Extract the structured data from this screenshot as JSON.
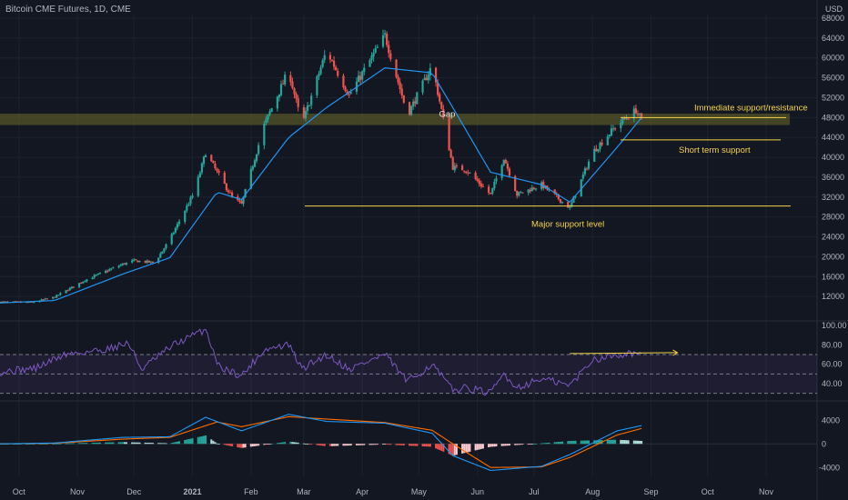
{
  "header": {
    "title": "Bitcoin CME Futures, 1D, CME",
    "currency": "USD"
  },
  "colors": {
    "up": "#26a69a",
    "down": "#ef5350",
    "ma": "#2196f3",
    "rsi": "#7e57c2",
    "macd": "#2196f3",
    "signal": "#ff6d00",
    "annotation": "#f5d44a"
  },
  "chart_data": [
    {
      "type": "candlestick",
      "title": "Bitcoin CME Futures, 1D, CME",
      "ylabel": "USD",
      "ylim": [
        8000,
        68000
      ],
      "yticks": [
        12000,
        16000,
        20000,
        24000,
        28000,
        32000,
        36000,
        40000,
        44000,
        48000,
        52000,
        56000,
        60000,
        64000,
        68000
      ],
      "xticks": [
        "Oct",
        "Nov",
        "Dec",
        "2021",
        "Feb",
        "Mar",
        "Apr",
        "May",
        "Jun",
        "Jul",
        "Aug",
        "Sep",
        "Oct",
        "Nov"
      ],
      "price_path": [
        [
          "2020-09-21",
          10900
        ],
        [
          "2020-10-08",
          10800
        ],
        [
          "2020-10-20",
          11900
        ],
        [
          "2020-11-05",
          15300
        ],
        [
          "2020-11-25",
          18500
        ],
        [
          "2020-12-01",
          19200
        ],
        [
          "2020-12-12",
          18800
        ],
        [
          "2020-12-20",
          23500
        ],
        [
          "2021-01-02",
          33000
        ],
        [
          "2021-01-08",
          41000
        ],
        [
          "2021-01-14",
          37000
        ],
        [
          "2021-01-22",
          32000
        ],
        [
          "2021-01-27",
          30500
        ],
        [
          "2021-02-08",
          46500
        ],
        [
          "2021-02-21",
          57500
        ],
        [
          "2021-02-28",
          46500
        ],
        [
          "2021-03-13",
          61500
        ],
        [
          "2021-03-25",
          52500
        ],
        [
          "2021-04-13",
          64500
        ],
        [
          "2021-04-25",
          48500
        ],
        [
          "2021-05-08",
          58500
        ],
        [
          "2021-05-13",
          49500
        ],
        [
          "2021-05-19",
          38000
        ],
        [
          "2021-05-26",
          37500
        ],
        [
          "2021-06-08",
          32500
        ],
        [
          "2021-06-15",
          40000
        ],
        [
          "2021-06-22",
          32500
        ],
        [
          "2021-07-05",
          34500
        ],
        [
          "2021-07-20",
          29800
        ],
        [
          "2021-08-01",
          41000
        ],
        [
          "2021-08-14",
          46500
        ],
        [
          "2021-08-24",
          49500
        ],
        [
          "2021-08-27",
          47500
        ]
      ],
      "moving_average_path": [
        [
          "2020-09-21",
          10700
        ],
        [
          "2020-10-20",
          11200
        ],
        [
          "2020-11-25",
          16500
        ],
        [
          "2020-12-20",
          19800
        ],
        [
          "2021-01-14",
          33000
        ],
        [
          "2021-01-27",
          31500
        ],
        [
          "2021-02-21",
          44000
        ],
        [
          "2021-03-13",
          50000
        ],
        [
          "2021-04-13",
          58000
        ],
        [
          "2021-05-08",
          57000
        ],
        [
          "2021-05-19",
          50000
        ],
        [
          "2021-06-08",
          37000
        ],
        [
          "2021-07-05",
          34500
        ],
        [
          "2021-07-20",
          31000
        ],
        [
          "2021-08-14",
          42000
        ],
        [
          "2021-08-27",
          48000
        ]
      ],
      "annotations": [
        {
          "label": "Gap",
          "x": "2021-05-16",
          "y": 48500
        },
        {
          "label": "Immediate support/resistance",
          "level": 48000,
          "band": [
            46500,
            48800
          ]
        },
        {
          "label": "Short term support",
          "level": 43500
        },
        {
          "label": "Major support level",
          "level": 30200
        }
      ]
    },
    {
      "type": "line",
      "title": "",
      "ylim": [
        25,
        100
      ],
      "yticks": [
        40.0,
        60.0,
        80.0,
        100.0
      ],
      "overbought": 70,
      "midline": 50,
      "oversold": 30,
      "rsi_path": [
        [
          "2020-09-21",
          52
        ],
        [
          "2020-10-10",
          56
        ],
        [
          "2020-10-25",
          70
        ],
        [
          "2020-11-15",
          75
        ],
        [
          "2020-11-28",
          82
        ],
        [
          "2020-12-05",
          55
        ],
        [
          "2020-12-22",
          80
        ],
        [
          "2021-01-08",
          96
        ],
        [
          "2021-01-15",
          58
        ],
        [
          "2021-01-27",
          48
        ],
        [
          "2021-02-08",
          75
        ],
        [
          "2021-02-21",
          80
        ],
        [
          "2021-02-28",
          55
        ],
        [
          "2021-03-13",
          70
        ],
        [
          "2021-03-25",
          55
        ],
        [
          "2021-04-13",
          70
        ],
        [
          "2021-04-25",
          42
        ],
        [
          "2021-05-08",
          60
        ],
        [
          "2021-05-19",
          33
        ],
        [
          "2021-05-26",
          36
        ],
        [
          "2021-06-08",
          30
        ],
        [
          "2021-06-15",
          50
        ],
        [
          "2021-06-22",
          36
        ],
        [
          "2021-07-05",
          45
        ],
        [
          "2021-07-20",
          38
        ],
        [
          "2021-08-01",
          65
        ],
        [
          "2021-08-14",
          70
        ],
        [
          "2021-08-24",
          72
        ],
        [
          "2021-08-27",
          68
        ]
      ],
      "arrow": {
        "from": [
          "2021-07-20",
          71
        ],
        "to": [
          "2021-09-15",
          71
        ]
      }
    },
    {
      "type": "histogram",
      "title": "",
      "ylim": [
        -5500,
        6500
      ],
      "yticks": [
        -4000,
        0,
        4000
      ],
      "macd_path": [
        [
          "2020-09-21",
          0
        ],
        [
          "2020-10-20",
          150
        ],
        [
          "2020-11-25",
          1100
        ],
        [
          "2020-12-20",
          1200
        ],
        [
          "2021-01-08",
          4500
        ],
        [
          "2021-01-27",
          2200
        ],
        [
          "2021-02-21",
          5000
        ],
        [
          "2021-03-13",
          3800
        ],
        [
          "2021-04-13",
          3500
        ],
        [
          "2021-05-08",
          1800
        ],
        [
          "2021-05-19",
          -2000
        ],
        [
          "2021-06-08",
          -4500
        ],
        [
          "2021-07-05",
          -3800
        ],
        [
          "2021-07-20",
          -1800
        ],
        [
          "2021-08-14",
          2200
        ],
        [
          "2021-08-27",
          3100
        ]
      ],
      "signal_path": [
        [
          "2020-09-21",
          0
        ],
        [
          "2020-10-20",
          100
        ],
        [
          "2020-11-25",
          800
        ],
        [
          "2020-12-20",
          1100
        ],
        [
          "2021-01-14",
          3700
        ],
        [
          "2021-01-27",
          2900
        ],
        [
          "2021-02-21",
          4600
        ],
        [
          "2021-03-13",
          4200
        ],
        [
          "2021-04-13",
          3600
        ],
        [
          "2021-05-08",
          2300
        ],
        [
          "2021-05-19",
          0
        ],
        [
          "2021-06-08",
          -4000
        ],
        [
          "2021-07-05",
          -3900
        ],
        [
          "2021-07-20",
          -2300
        ],
        [
          "2021-08-14",
          1500
        ],
        [
          "2021-08-27",
          2600
        ]
      ]
    }
  ]
}
